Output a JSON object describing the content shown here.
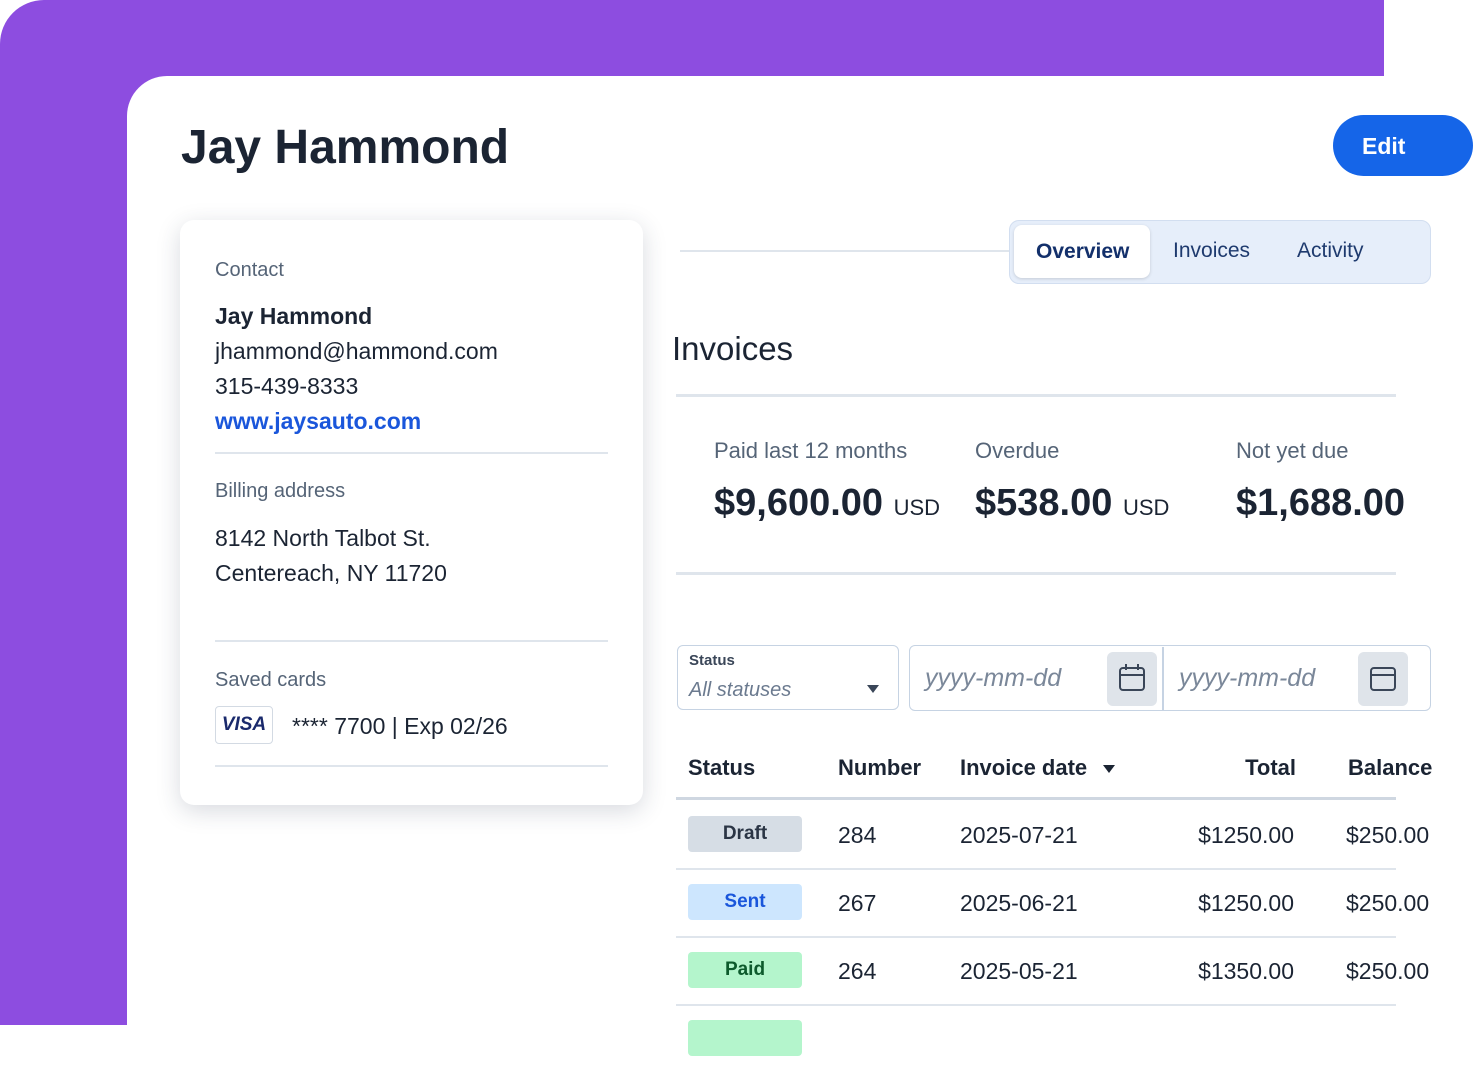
{
  "header": {
    "title": "Jay Hammond",
    "button": "Edit"
  },
  "contact_card": {
    "contact_heading": "Contact",
    "name": "Jay Hammond",
    "email": "jhammond@hammond.com",
    "phone": "315-439-8333",
    "website": "www.jaysauto.com",
    "billing_heading": "Billing address",
    "address_lines": [
      "8142 North Talbot St.",
      "Centereach, NY 11720"
    ],
    "cards_heading": "Saved cards",
    "card_brand": "VISA",
    "card_text": "**** 7700 | Exp 02/26"
  },
  "tabs": [
    "Overview",
    "Invoices",
    "Activity"
  ],
  "invoices": {
    "title": "Invoices",
    "summary": [
      {
        "label": "Paid last 12 months",
        "amount": "$9,600.00",
        "currency": "USD"
      },
      {
        "label": "Overdue",
        "amount": "$538.00",
        "currency": "USD"
      },
      {
        "label": "Not yet due",
        "amount": "$1,688.00"
      }
    ],
    "filters": {
      "status_label": "Status",
      "status_placeholder": "All statuses",
      "date_from": "yyyy-mm-dd",
      "date_to": "yyyy-mm-dd"
    },
    "table": {
      "columns": [
        "Status",
        "Number",
        "Invoice date",
        "Total",
        "Balance"
      ],
      "rows": [
        [
          "Draft",
          "284",
          "2025-07-21",
          "$1250.00",
          "$250.00"
        ],
        [
          "Sent",
          "267",
          "2025-06-21",
          "$1250.00",
          "$250.00"
        ],
        [
          "Paid",
          "264",
          "2025-05-21",
          "$1350.00",
          "$250.00"
        ]
      ]
    }
  }
}
